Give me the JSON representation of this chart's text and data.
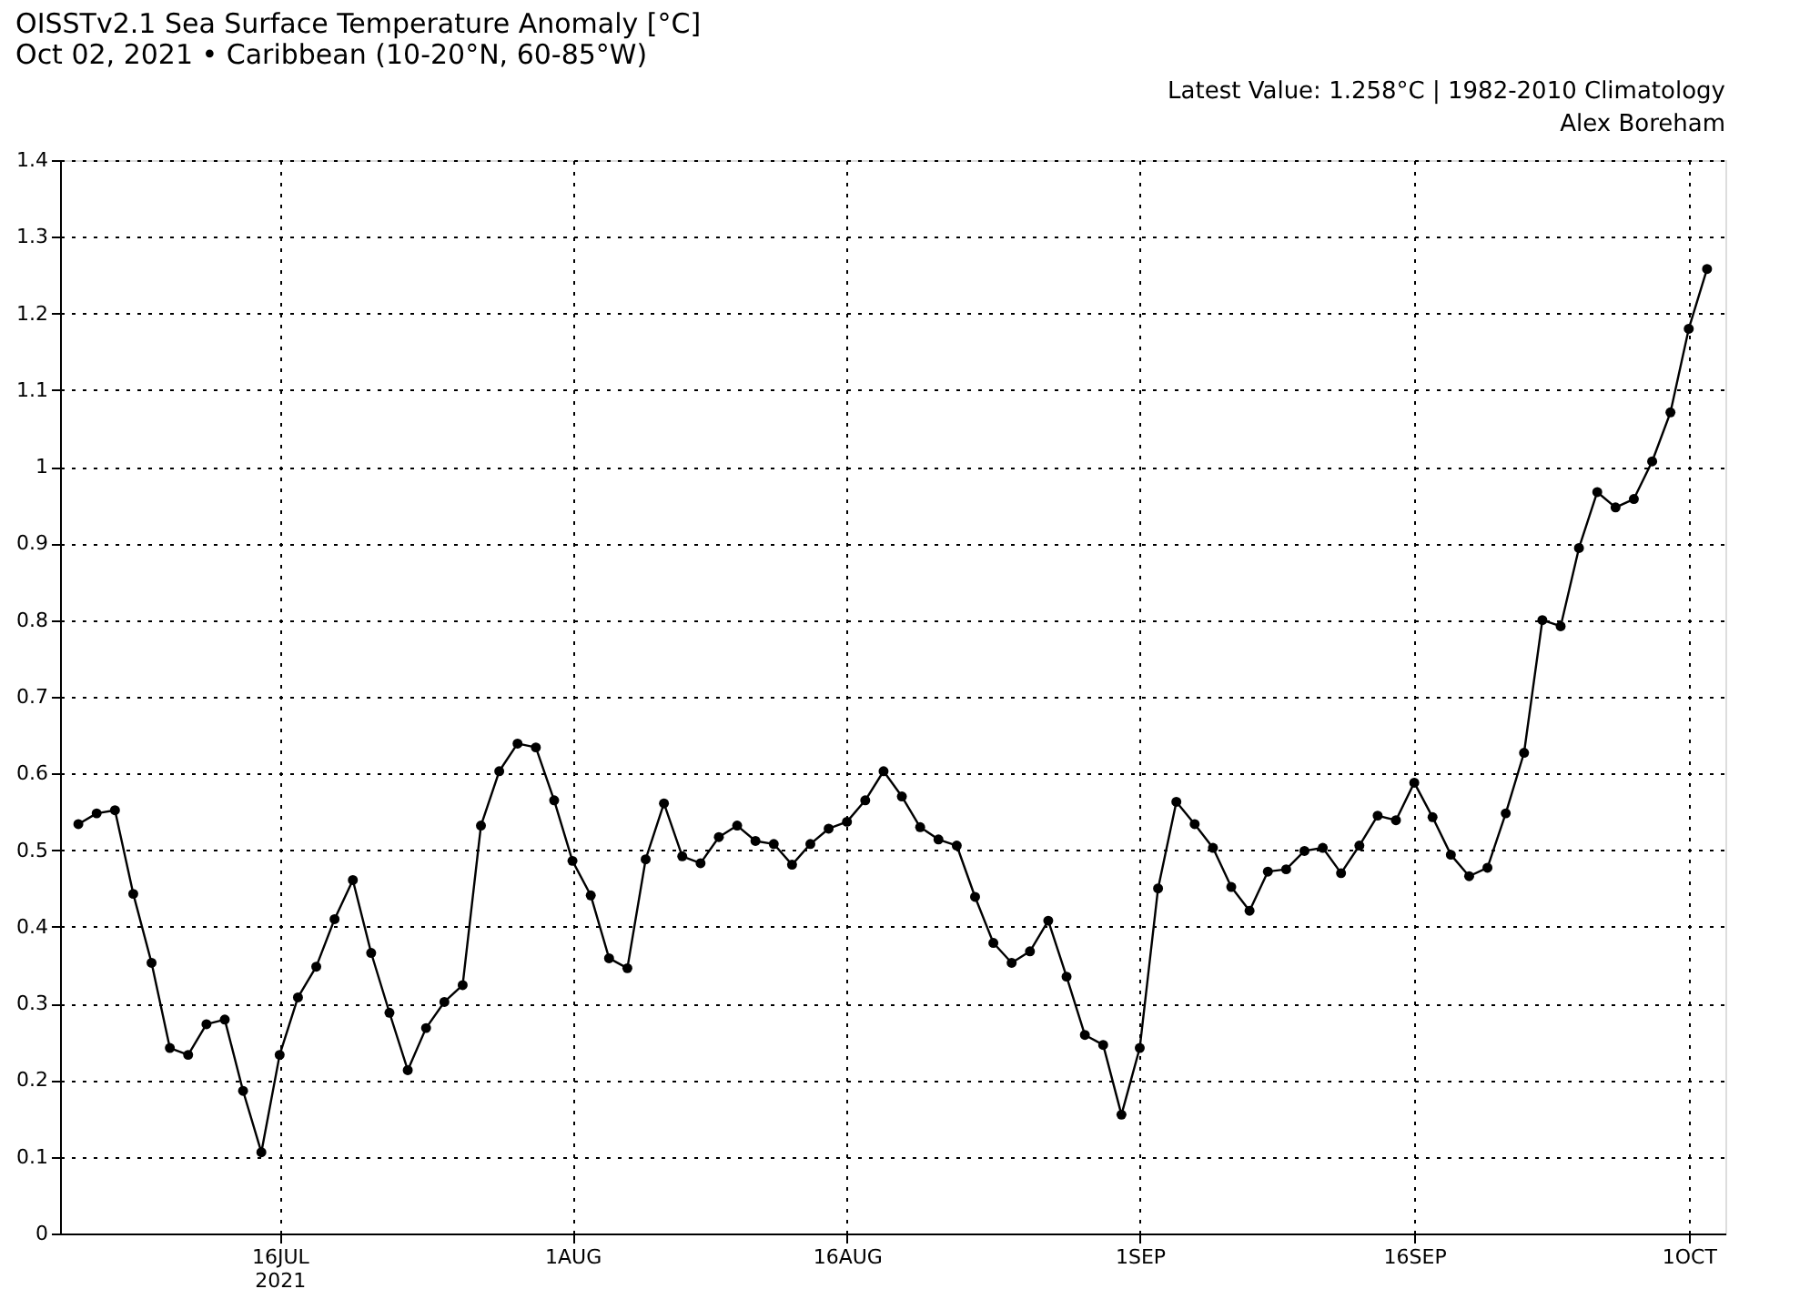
{
  "chart_data": {
    "type": "line",
    "title": "OISSTv2.1 Sea Surface Temperature Anomaly [°C]",
    "subtitle": "Oct 02, 2021 • Caribbean (10-20°N, 60-85°W)",
    "annotations": [
      "Latest Value: 1.258°C | 1982-2010 Climatology",
      "Alex Boreham"
    ],
    "x": [
      "2021-07-05",
      "2021-07-06",
      "2021-07-07",
      "2021-07-08",
      "2021-07-09",
      "2021-07-10",
      "2021-07-11",
      "2021-07-12",
      "2021-07-13",
      "2021-07-14",
      "2021-07-15",
      "2021-07-16",
      "2021-07-17",
      "2021-07-18",
      "2021-07-19",
      "2021-07-20",
      "2021-07-21",
      "2021-07-22",
      "2021-07-23",
      "2021-07-24",
      "2021-07-25",
      "2021-07-26",
      "2021-07-27",
      "2021-07-28",
      "2021-07-29",
      "2021-07-30",
      "2021-07-31",
      "2021-08-01",
      "2021-08-02",
      "2021-08-03",
      "2021-08-04",
      "2021-08-05",
      "2021-08-06",
      "2021-08-07",
      "2021-08-08",
      "2021-08-09",
      "2021-08-10",
      "2021-08-11",
      "2021-08-12",
      "2021-08-13",
      "2021-08-14",
      "2021-08-15",
      "2021-08-16",
      "2021-08-17",
      "2021-08-18",
      "2021-08-19",
      "2021-08-20",
      "2021-08-21",
      "2021-08-22",
      "2021-08-23",
      "2021-08-24",
      "2021-08-25",
      "2021-08-26",
      "2021-08-27",
      "2021-08-28",
      "2021-08-29",
      "2021-08-30",
      "2021-08-31",
      "2021-09-01",
      "2021-09-02",
      "2021-09-03",
      "2021-09-04",
      "2021-09-05",
      "2021-09-06",
      "2021-09-07",
      "2021-09-08",
      "2021-09-09",
      "2021-09-10",
      "2021-09-11",
      "2021-09-12",
      "2021-09-13",
      "2021-09-14",
      "2021-09-15",
      "2021-09-16",
      "2021-09-17",
      "2021-09-18",
      "2021-09-19",
      "2021-09-20",
      "2021-09-21",
      "2021-09-22",
      "2021-09-23",
      "2021-09-24",
      "2021-09-25",
      "2021-09-26",
      "2021-09-27",
      "2021-09-28",
      "2021-09-29",
      "2021-09-30",
      "2021-10-01",
      "2021-10-02"
    ],
    "series": [
      {
        "color": "#000000",
        "values": [
          0.534,
          0.548,
          0.552,
          0.443,
          0.353,
          0.242,
          0.233,
          0.273,
          0.279,
          0.186,
          0.106,
          0.233,
          0.308,
          0.348,
          0.41,
          0.461,
          0.366,
          0.288,
          0.213,
          0.268,
          0.302,
          0.324,
          0.532,
          0.603,
          0.639,
          0.634,
          0.565,
          0.486,
          0.441,
          0.359,
          0.346,
          0.488,
          0.561,
          0.492,
          0.483,
          0.517,
          0.532,
          0.512,
          0.508,
          0.481,
          0.508,
          0.528,
          0.537,
          0.565,
          0.603,
          0.57,
          0.53,
          0.514,
          0.506,
          0.439,
          0.379,
          0.353,
          0.368,
          0.408,
          0.335,
          0.259,
          0.246,
          0.155,
          0.242,
          0.45,
          0.563,
          0.534,
          0.503,
          0.452,
          0.421,
          0.472,
          0.475,
          0.499,
          0.503,
          0.47,
          0.506,
          0.545,
          0.539,
          0.588,
          0.543,
          0.494,
          0.466,
          0.477,
          0.548,
          0.627,
          0.8,
          0.792,
          0.894,
          0.967,
          0.947,
          0.958,
          1.007,
          1.071,
          1.18,
          1.258
        ]
      }
    ],
    "xlim": [
      "2021-07-04",
      "2021-10-03"
    ],
    "xticks": [
      {
        "value": "2021-07-16",
        "label": "16JUL\n2021"
      },
      {
        "value": "2021-08-01",
        "label": "1AUG"
      },
      {
        "value": "2021-08-16",
        "label": "16AUG"
      },
      {
        "value": "2021-09-01",
        "label": "1SEP"
      },
      {
        "value": "2021-09-16",
        "label": "16SEP"
      },
      {
        "value": "2021-10-01",
        "label": "1OCT"
      }
    ],
    "ylim": [
      0,
      1.4
    ],
    "yticks": [
      0,
      0.1,
      0.2,
      0.3,
      0.4,
      0.5,
      0.6,
      0.7,
      0.8,
      0.9,
      1,
      1.1,
      1.2,
      1.3,
      1.4
    ],
    "grid": true,
    "marker": "circle",
    "line_style": "solid",
    "legend": false
  }
}
